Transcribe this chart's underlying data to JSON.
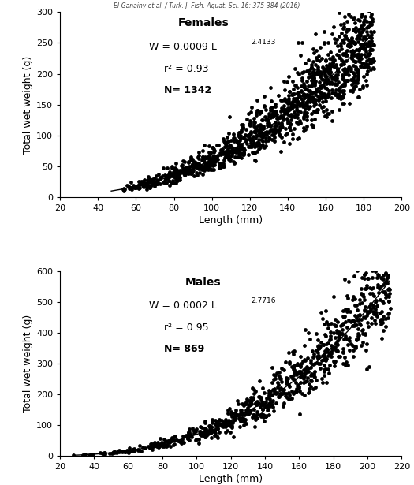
{
  "header": "El-Ganainy et al. / Turk. J. Fish. Aquat. Sci. 16: 375-384 (2016)",
  "females": {
    "label": "Females",
    "a": 0.0009,
    "b": 2.4133,
    "r2": 0.93,
    "N": 1342,
    "annotation_line1": "W = 0.0009 L",
    "annotation_exp1": "2.4133",
    "annotation_line2": "r² = 0.93",
    "annotation_line3": "N= 1342",
    "xlim": [
      20,
      200
    ],
    "ylim": [
      0,
      300
    ],
    "xticks": [
      20,
      40,
      60,
      80,
      100,
      120,
      140,
      160,
      180,
      200
    ],
    "yticks": [
      0,
      50,
      100,
      150,
      200,
      250,
      300
    ],
    "xlabel": "Length (mm)",
    "ylabel": "Total wet weight (g)",
    "seed": 42,
    "n_points": 1342,
    "x_min_data": 47,
    "x_max_data": 185,
    "scatter_size": 12,
    "scatter_color": "#000000",
    "line_color": "#000000"
  },
  "males": {
    "label": "Males",
    "a": 0.0002,
    "b": 2.7716,
    "r2": 0.95,
    "N": 869,
    "annotation_line1": "W = 0.0002 L",
    "annotation_exp1": "2.7716",
    "annotation_line2": "r² = 0.95",
    "annotation_line3": "N= 869",
    "xlim": [
      20,
      220
    ],
    "ylim": [
      0,
      600
    ],
    "xticks": [
      20,
      40,
      60,
      80,
      100,
      120,
      140,
      160,
      180,
      200,
      220
    ],
    "yticks": [
      0,
      100,
      200,
      300,
      400,
      500,
      600
    ],
    "xlabel": "Length (mm)",
    "ylabel": "Total wet weight (g)",
    "seed": 123,
    "n_points": 869,
    "x_min_data": 28,
    "x_max_data": 213,
    "scatter_size": 12,
    "scatter_color": "#000000",
    "line_color": "#000000"
  }
}
